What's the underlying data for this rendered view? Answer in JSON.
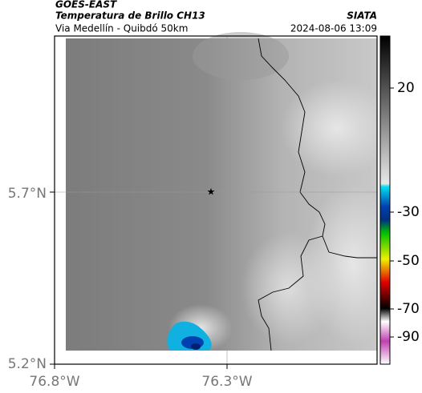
{
  "header": {
    "source": "GOES-EAST",
    "title": "Temperatura de Brillo CH13",
    "subtitle": "Via Medellín - Quibdó 50km",
    "agency": "SIATA",
    "datetime": "2024-08-06 13:09"
  },
  "map": {
    "lat_ticks": [
      "5.7°N",
      "5.2°N"
    ],
    "lon_ticks": [
      "76.8°W",
      "76.3°W"
    ]
  },
  "colorbar": {
    "ticks": [
      20,
      -30,
      -50,
      -70,
      -90
    ]
  }
}
